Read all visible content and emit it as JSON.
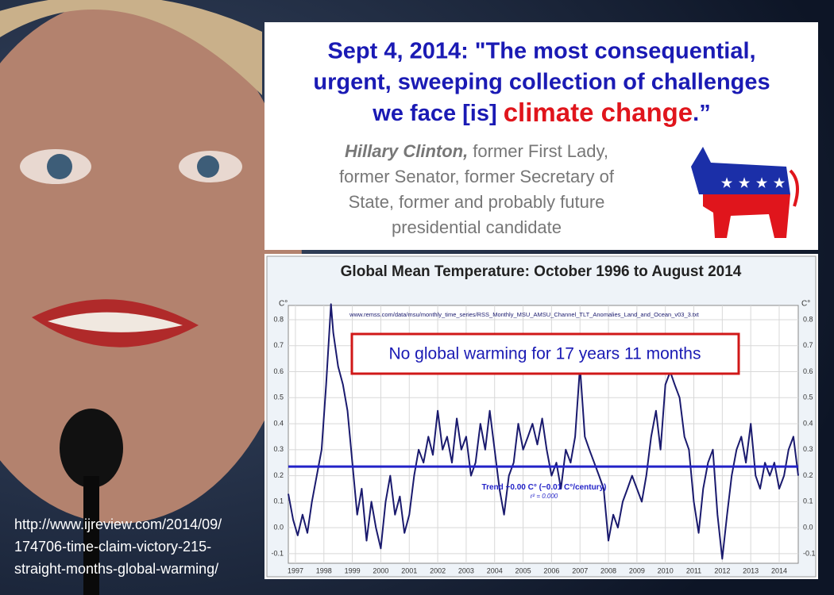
{
  "quote": {
    "lines": [
      "Sept 4, 2014: \"The most consequential,",
      "urgent, sweeping collection of challenges",
      "we face [is] "
    ],
    "highlight": "climate change",
    "end": ".”"
  },
  "attribution": {
    "name": "Hillary Clinton,",
    "lines": [
      "former First Lady,",
      "former Senator, former Secretary of",
      "State, former and probably future",
      "presidential candidate"
    ]
  },
  "source_url": [
    "http://www.ijreview.com/2014/09/",
    "174706-time-claim-victory-215-",
    "straight-months-global-warming/"
  ],
  "chart_data": {
    "type": "line",
    "title": "Global Mean Temperature: October 1996 to August 2014",
    "data_source": "www.remss.com/data/msu/monthly_time_series/RSS_Monthly_MSU_AMSU_Channel_TLT_Anomalies_Land_and_Ocean_v03_3.txt",
    "annotation": "No global warming for 17 years 11 months",
    "y_unit": "C°",
    "trend": {
      "label": "Trend −0.00 C° (−0.01 C°/century)",
      "r2": "r² = 0.000",
      "value": 0.235,
      "color": "#2323c8"
    },
    "x": [
      1996.75,
      1996.92,
      1997.08,
      1997.25,
      1997.42,
      1997.58,
      1997.75,
      1997.92,
      1998.08,
      1998.25,
      1998.33,
      1998.5,
      1998.67,
      1998.83,
      1999.0,
      1999.17,
      1999.33,
      1999.5,
      1999.67,
      1999.83,
      2000.0,
      2000.17,
      2000.33,
      2000.5,
      2000.67,
      2000.83,
      2001.0,
      2001.17,
      2001.33,
      2001.5,
      2001.67,
      2001.83,
      2002.0,
      2002.17,
      2002.33,
      2002.5,
      2002.67,
      2002.83,
      2003.0,
      2003.17,
      2003.33,
      2003.5,
      2003.67,
      2003.83,
      2004.0,
      2004.17,
      2004.33,
      2004.5,
      2004.67,
      2004.83,
      2005.0,
      2005.17,
      2005.33,
      2005.5,
      2005.67,
      2005.83,
      2006.0,
      2006.17,
      2006.33,
      2006.5,
      2006.67,
      2006.83,
      2007.0,
      2007.17,
      2007.33,
      2007.5,
      2007.67,
      2007.83,
      2008.0,
      2008.17,
      2008.33,
      2008.5,
      2008.67,
      2008.83,
      2009.0,
      2009.17,
      2009.33,
      2009.5,
      2009.67,
      2009.83,
      2010.0,
      2010.17,
      2010.33,
      2010.5,
      2010.67,
      2010.83,
      2011.0,
      2011.17,
      2011.33,
      2011.5,
      2011.67,
      2011.83,
      2012.0,
      2012.17,
      2012.33,
      2012.5,
      2012.67,
      2012.83,
      2013.0,
      2013.17,
      2013.33,
      2013.5,
      2013.67,
      2013.83,
      2014.0,
      2014.17,
      2014.33,
      2014.5,
      2014.67
    ],
    "series": [
      {
        "color": "#1a1a6e",
        "values": [
          0.13,
          0.03,
          -0.03,
          0.05,
          -0.02,
          0.1,
          0.2,
          0.3,
          0.55,
          0.86,
          0.75,
          0.62,
          0.55,
          0.45,
          0.25,
          0.05,
          0.15,
          -0.05,
          0.1,
          0.0,
          -0.08,
          0.1,
          0.2,
          0.05,
          0.12,
          -0.02,
          0.05,
          0.2,
          0.3,
          0.25,
          0.35,
          0.28,
          0.45,
          0.3,
          0.35,
          0.25,
          0.42,
          0.3,
          0.35,
          0.2,
          0.25,
          0.4,
          0.3,
          0.45,
          0.3,
          0.15,
          0.05,
          0.2,
          0.25,
          0.4,
          0.3,
          0.35,
          0.4,
          0.32,
          0.42,
          0.3,
          0.2,
          0.25,
          0.15,
          0.3,
          0.25,
          0.35,
          0.62,
          0.35,
          0.3,
          0.25,
          0.2,
          0.15,
          -0.05,
          0.05,
          0.0,
          0.1,
          0.15,
          0.2,
          0.15,
          0.1,
          0.2,
          0.35,
          0.45,
          0.3,
          0.55,
          0.6,
          0.55,
          0.5,
          0.35,
          0.3,
          0.1,
          -0.02,
          0.15,
          0.25,
          0.3,
          0.05,
          -0.12,
          0.05,
          0.2,
          0.3,
          0.35,
          0.25,
          0.4,
          0.2,
          0.15,
          0.25,
          0.2,
          0.25,
          0.15,
          0.2,
          0.3,
          0.35,
          0.2
        ]
      }
    ],
    "xlim": [
      1996.75,
      2014.67
    ],
    "xticks": [
      1997,
      1998,
      1999,
      2000,
      2001,
      2002,
      2003,
      2004,
      2005,
      2006,
      2007,
      2008,
      2009,
      2010,
      2011,
      2012,
      2013,
      2014
    ],
    "ylim": [
      -0.137,
      0.855
    ],
    "yticks": [
      -0.1,
      {
        "value": 0,
        "label": "0.0"
      },
      0.1,
      0.2,
      0.3,
      0.4,
      0.5,
      0.6,
      0.7,
      0.8
    ],
    "grid": true
  }
}
